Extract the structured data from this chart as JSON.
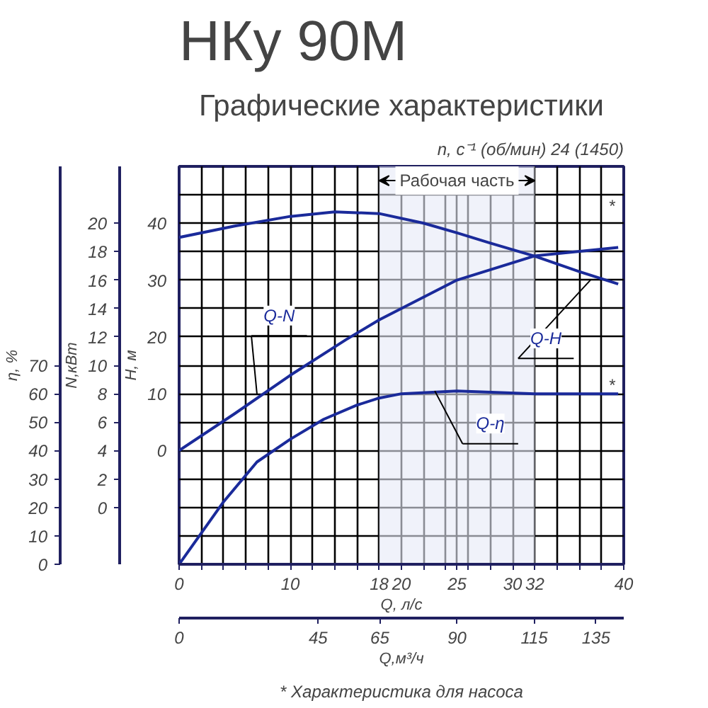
{
  "chart_data": {
    "type": "line",
    "title": "НКу 90М",
    "subtitle": "Графические характеристики",
    "xlabel": "Q, л/с",
    "x2label": "Q,м³/ч",
    "ylabel": "H, м",
    "y2label": "N,кВт",
    "y3label": "η, %",
    "xlim": [
      0,
      40
    ],
    "xticks": [
      0,
      {
        "value": 2,
        "label": null
      },
      {
        "value": 4,
        "label": null
      },
      {
        "value": 6,
        "label": null
      },
      {
        "value": 8,
        "label": null
      },
      10,
      {
        "value": 12,
        "label": null
      },
      {
        "value": 14,
        "label": null
      },
      {
        "value": 16,
        "label": null
      },
      18,
      20,
      {
        "value": 22,
        "label": null
      },
      {
        "value": 24,
        "label": null
      },
      25,
      {
        "value": 26,
        "label": null
      },
      {
        "value": 28,
        "label": null
      },
      30,
      32,
      {
        "value": 34,
        "label": null
      },
      {
        "value": 36,
        "label": null
      },
      {
        "value": 38,
        "label": null
      },
      40
    ],
    "x2lim": [
      0,
      144
    ],
    "x2ticks": [
      0,
      45,
      65,
      90,
      115,
      135
    ],
    "ylim": [
      -20,
      50
    ],
    "yticks": [
      {
        "value": -20,
        "label": null
      },
      {
        "value": -15,
        "label": null
      },
      {
        "value": -10,
        "label": null
      },
      {
        "value": -5,
        "label": null
      },
      0,
      {
        "value": 5,
        "label": null
      },
      10,
      {
        "value": 15,
        "label": null
      },
      20,
      {
        "value": 25,
        "label": null
      },
      30,
      {
        "value": 35,
        "label": null
      },
      40,
      {
        "value": 45,
        "label": null
      },
      {
        "value": 50,
        "label": null
      }
    ],
    "y2lim": [
      -4,
      24
    ],
    "y2ticks": [
      0,
      2,
      4,
      6,
      8,
      10,
      12,
      14,
      16,
      18,
      20
    ],
    "y3lim": [
      0,
      140
    ],
    "y3ticks": [
      0,
      10,
      20,
      30,
      40,
      50,
      60,
      70
    ],
    "grid": true,
    "marker": "none",
    "line_style": "solid",
    "series": [
      {
        "name": "Q-H",
        "color": "#1a2a9a",
        "x": [
          0,
          5,
          10,
          14,
          18,
          22,
          25,
          28,
          32,
          36,
          39.5
        ],
        "values": [
          37.5,
          39.5,
          41.2,
          42,
          41.7,
          40,
          38.3,
          36.5,
          34.2,
          31.5,
          29.3
        ]
      },
      {
        "name": "Q-N",
        "color": "#1a2a9a",
        "axis": "y2",
        "x": [
          0,
          5,
          10,
          15,
          18,
          25,
          32,
          39.5
        ],
        "values": [
          4,
          6.6,
          9.3,
          11.8,
          13.2,
          16,
          17.7,
          18.3
        ]
      },
      {
        "name": "Q-η",
        "color": "#1a2a9a",
        "axis": "y3",
        "x": [
          0,
          2,
          4,
          7,
          10,
          13,
          16,
          18,
          20,
          25,
          32,
          39.5
        ],
        "values": [
          0,
          11,
          22,
          36,
          44,
          51,
          56,
          58.5,
          60,
          61,
          60,
          60
        ]
      }
    ],
    "bands": [
      {
        "axis": "x",
        "from": 18,
        "to": 32,
        "label": "Рабочая часть",
        "color": "#e6e9f7"
      }
    ],
    "annotations": [
      "n, с⁻¹ (об/мин) 24 (1450)",
      "* Характеристика для насоса",
      "*",
      "*"
    ]
  }
}
